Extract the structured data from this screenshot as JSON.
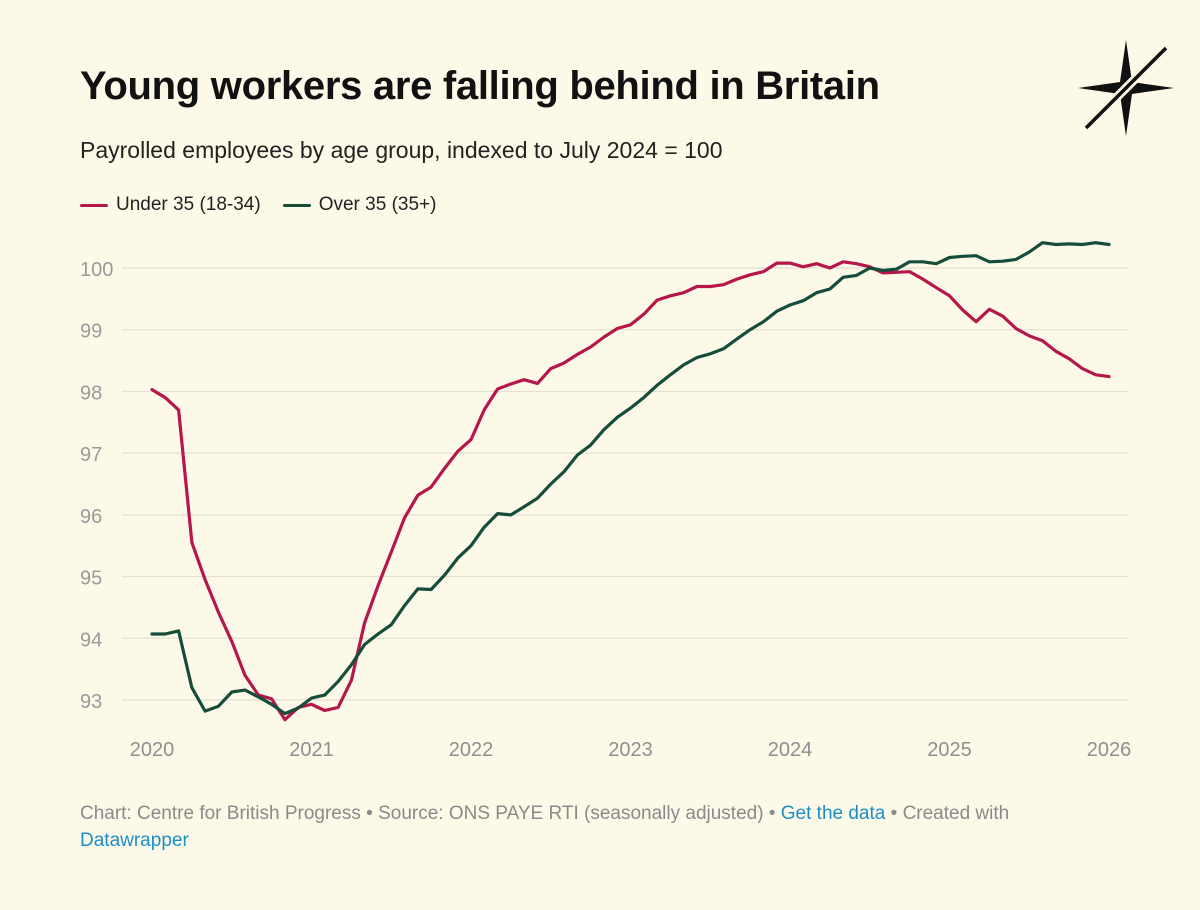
{
  "header": {
    "title": "Young workers are falling behind in Britain",
    "subtitle": "Payrolled employees by age group, indexed to July 2024 = 100"
  },
  "legend": [
    {
      "label": "Under 35 (18-34)",
      "color": "#b5174b"
    },
    {
      "label": "Over 35 (35+)",
      "color": "#164d3a"
    }
  ],
  "footer": {
    "chart_credit": "Chart: Centre for British Progress",
    "sep1": " • ",
    "source": "Source: ONS PAYE RTI (seasonally adjusted)",
    "sep2": " • ",
    "get_data": "Get the data",
    "sep3": " • ",
    "created_with": "Created with",
    "tool": "Datawrapper"
  },
  "colors": {
    "background": "#fdf9e8",
    "under35": "#b5174b",
    "over35": "#164d3a",
    "grid": "#e4e0d2",
    "tick": "#9a9a9a",
    "link": "#1c8fc9"
  },
  "logo_icon": "compass-star-icon",
  "chart_data": {
    "type": "line",
    "title": "Young workers are falling behind in Britain",
    "subtitle": "Payrolled employees by age group, indexed to July 2024 = 100",
    "xlabel": "",
    "ylabel": "",
    "x_ticks": [
      "2020",
      "2021",
      "2022",
      "2023",
      "2024",
      "2025",
      "2026"
    ],
    "y_ticks": [
      93,
      94,
      95,
      96,
      97,
      98,
      99,
      100
    ],
    "xlim": [
      2020,
      2026
    ],
    "ylim": [
      92.6,
      100.5
    ],
    "grid": "horizontal",
    "legend_position": "top-left",
    "series": [
      {
        "name": "Under 35 (18-34)",
        "color": "#b5174b",
        "points": [
          [
            2020.0,
            98.03
          ],
          [
            2020.083,
            97.9
          ],
          [
            2020.167,
            97.7
          ],
          [
            2020.25,
            95.55
          ],
          [
            2020.333,
            94.95
          ],
          [
            2020.417,
            94.42
          ],
          [
            2020.5,
            93.95
          ],
          [
            2020.583,
            93.4
          ],
          [
            2020.667,
            93.08
          ],
          [
            2020.75,
            93.02
          ],
          [
            2020.833,
            92.68
          ],
          [
            2020.917,
            92.88
          ],
          [
            2021.0,
            92.93
          ],
          [
            2021.083,
            92.83
          ],
          [
            2021.167,
            92.88
          ],
          [
            2021.25,
            93.32
          ],
          [
            2021.333,
            94.25
          ],
          [
            2021.417,
            94.85
          ],
          [
            2021.5,
            95.4
          ],
          [
            2021.583,
            95.95
          ],
          [
            2021.667,
            96.32
          ],
          [
            2021.75,
            96.45
          ],
          [
            2021.833,
            96.75
          ],
          [
            2021.917,
            97.03
          ],
          [
            2022.0,
            97.22
          ],
          [
            2022.083,
            97.7
          ],
          [
            2022.167,
            98.04
          ],
          [
            2022.25,
            98.12
          ],
          [
            2022.333,
            98.19
          ],
          [
            2022.417,
            98.13
          ],
          [
            2022.5,
            98.37
          ],
          [
            2022.583,
            98.46
          ],
          [
            2022.667,
            98.6
          ],
          [
            2022.75,
            98.72
          ],
          [
            2022.833,
            98.88
          ],
          [
            2022.917,
            99.02
          ],
          [
            2023.0,
            99.08
          ],
          [
            2023.083,
            99.25
          ],
          [
            2023.167,
            99.48
          ],
          [
            2023.25,
            99.55
          ],
          [
            2023.333,
            99.6
          ],
          [
            2023.417,
            99.7
          ],
          [
            2023.5,
            99.7
          ],
          [
            2023.583,
            99.73
          ],
          [
            2023.667,
            99.82
          ],
          [
            2023.75,
            99.89
          ],
          [
            2023.833,
            99.94
          ],
          [
            2023.917,
            100.08
          ],
          [
            2024.0,
            100.08
          ],
          [
            2024.083,
            100.02
          ],
          [
            2024.167,
            100.07
          ],
          [
            2024.25,
            100.0
          ],
          [
            2024.333,
            100.1
          ],
          [
            2024.417,
            100.07
          ],
          [
            2024.5,
            100.02
          ],
          [
            2024.583,
            99.92
          ],
          [
            2024.667,
            99.93
          ],
          [
            2024.75,
            99.94
          ],
          [
            2024.833,
            99.82
          ],
          [
            2024.917,
            99.68
          ],
          [
            2025.0,
            99.55
          ],
          [
            2025.083,
            99.32
          ],
          [
            2025.167,
            99.13
          ],
          [
            2025.25,
            99.33
          ],
          [
            2025.333,
            99.22
          ],
          [
            2025.417,
            99.02
          ],
          [
            2025.5,
            98.9
          ],
          [
            2025.583,
            98.82
          ],
          [
            2025.667,
            98.65
          ],
          [
            2025.75,
            98.53
          ],
          [
            2025.833,
            98.37
          ],
          [
            2025.917,
            98.27
          ],
          [
            2026.0,
            98.24
          ]
        ]
      },
      {
        "name": "Over 35 (35+)",
        "color": "#164d3a",
        "points": [
          [
            2020.0,
            94.07
          ],
          [
            2020.083,
            94.07
          ],
          [
            2020.167,
            94.12
          ],
          [
            2020.25,
            93.2
          ],
          [
            2020.333,
            92.82
          ],
          [
            2020.417,
            92.9
          ],
          [
            2020.5,
            93.13
          ],
          [
            2020.583,
            93.16
          ],
          [
            2020.667,
            93.05
          ],
          [
            2020.75,
            92.93
          ],
          [
            2020.833,
            92.78
          ],
          [
            2020.917,
            92.87
          ],
          [
            2021.0,
            93.03
          ],
          [
            2021.083,
            93.08
          ],
          [
            2021.167,
            93.3
          ],
          [
            2021.25,
            93.57
          ],
          [
            2021.333,
            93.9
          ],
          [
            2021.417,
            94.07
          ],
          [
            2021.5,
            94.22
          ],
          [
            2021.583,
            94.53
          ],
          [
            2021.667,
            94.8
          ],
          [
            2021.75,
            94.79
          ],
          [
            2021.833,
            95.02
          ],
          [
            2021.917,
            95.3
          ],
          [
            2022.0,
            95.5
          ],
          [
            2022.083,
            95.8
          ],
          [
            2022.167,
            96.02
          ],
          [
            2022.25,
            96.0
          ],
          [
            2022.333,
            96.13
          ],
          [
            2022.417,
            96.27
          ],
          [
            2022.5,
            96.5
          ],
          [
            2022.583,
            96.7
          ],
          [
            2022.667,
            96.97
          ],
          [
            2022.75,
            97.13
          ],
          [
            2022.833,
            97.38
          ],
          [
            2022.917,
            97.58
          ],
          [
            2023.0,
            97.73
          ],
          [
            2023.083,
            97.9
          ],
          [
            2023.167,
            98.1
          ],
          [
            2023.25,
            98.27
          ],
          [
            2023.333,
            98.43
          ],
          [
            2023.417,
            98.55
          ],
          [
            2023.5,
            98.61
          ],
          [
            2023.583,
            98.69
          ],
          [
            2023.667,
            98.85
          ],
          [
            2023.75,
            99.0
          ],
          [
            2023.833,
            99.13
          ],
          [
            2023.917,
            99.3
          ],
          [
            2024.0,
            99.4
          ],
          [
            2024.083,
            99.47
          ],
          [
            2024.167,
            99.6
          ],
          [
            2024.25,
            99.66
          ],
          [
            2024.333,
            99.85
          ],
          [
            2024.417,
            99.88
          ],
          [
            2024.5,
            100.0
          ],
          [
            2024.583,
            99.96
          ],
          [
            2024.667,
            99.98
          ],
          [
            2024.75,
            100.1
          ],
          [
            2024.833,
            100.1
          ],
          [
            2024.917,
            100.07
          ],
          [
            2025.0,
            100.17
          ],
          [
            2025.083,
            100.19
          ],
          [
            2025.167,
            100.2
          ],
          [
            2025.25,
            100.1
          ],
          [
            2025.333,
            100.11
          ],
          [
            2025.417,
            100.14
          ],
          [
            2025.5,
            100.26
          ],
          [
            2025.583,
            100.41
          ],
          [
            2025.667,
            100.38
          ],
          [
            2025.75,
            100.39
          ],
          [
            2025.833,
            100.38
          ],
          [
            2025.917,
            100.41
          ],
          [
            2026.0,
            100.38
          ]
        ]
      }
    ]
  }
}
